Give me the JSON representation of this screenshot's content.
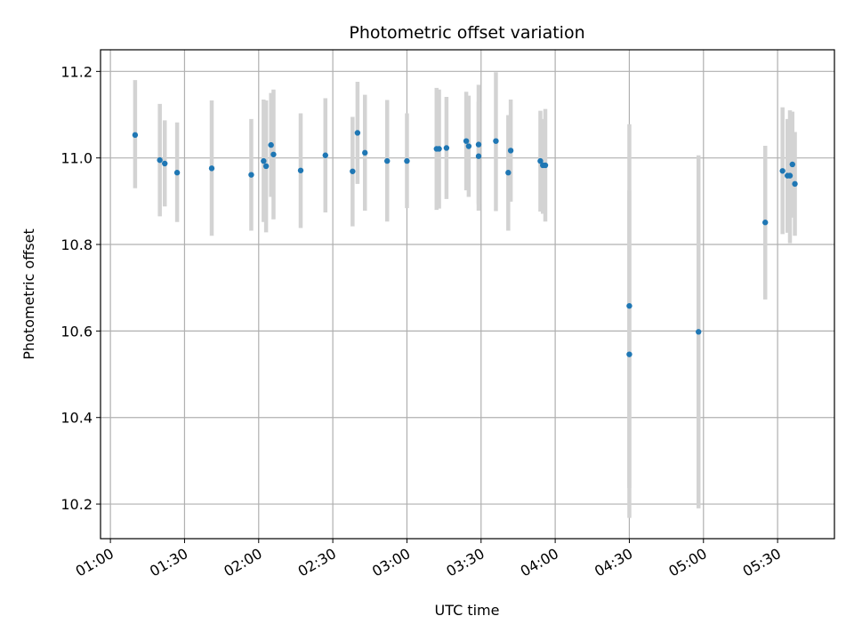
{
  "chart_data": {
    "type": "scatter",
    "title": "Photometric offset variation",
    "xlabel": "UTC time",
    "ylabel": "Photometric offset",
    "x_tick_labels": [
      "01:00",
      "01:30",
      "02:00",
      "02:30",
      "03:00",
      "03:30",
      "04:00",
      "04:30",
      "05:00",
      "05:30"
    ],
    "x_ticks": [
      "01:00",
      "01:30",
      "02:00",
      "02:30",
      "03:00",
      "03:30",
      "04:00",
      "04:30",
      "05:00",
      "05:30"
    ],
    "y_ticks": [
      10.2,
      10.4,
      10.6,
      10.8,
      11.0,
      11.2
    ],
    "y_tick_labels": [
      "10.2",
      "10.4",
      "10.6",
      "10.8",
      "11.0",
      "11.2"
    ],
    "xlim": [
      "00:56",
      "05:53"
    ],
    "ylim": [
      10.12,
      11.25
    ],
    "grid": true,
    "marker_color": "#1f77b4",
    "errorbar_color": "#d3d3d3",
    "series": [
      {
        "points": [
          {
            "t": "01:10",
            "y": 11.053,
            "lo": 10.93,
            "hi": 11.18
          },
          {
            "t": "01:20",
            "y": 10.995,
            "lo": 10.865,
            "hi": 11.125
          },
          {
            "t": "01:22",
            "y": 10.987,
            "lo": 10.888,
            "hi": 11.087
          },
          {
            "t": "01:27",
            "y": 10.966,
            "lo": 10.852,
            "hi": 11.082
          },
          {
            "t": "01:41",
            "y": 10.976,
            "lo": 10.82,
            "hi": 11.133
          },
          {
            "t": "01:57",
            "y": 10.961,
            "lo": 10.832,
            "hi": 11.09
          },
          {
            "t": "02:02",
            "y": 10.993,
            "lo": 10.852,
            "hi": 11.135
          },
          {
            "t": "02:03",
            "y": 10.981,
            "lo": 10.828,
            "hi": 11.133
          },
          {
            "t": "02:05",
            "y": 11.03,
            "lo": 10.91,
            "hi": 11.15
          },
          {
            "t": "02:06",
            "y": 11.008,
            "lo": 10.858,
            "hi": 11.158
          },
          {
            "t": "02:17",
            "y": 10.971,
            "lo": 10.838,
            "hi": 11.103
          },
          {
            "t": "02:27",
            "y": 11.006,
            "lo": 10.874,
            "hi": 11.138
          },
          {
            "t": "02:38",
            "y": 10.969,
            "lo": 10.842,
            "hi": 11.095
          },
          {
            "t": "02:40",
            "y": 11.058,
            "lo": 10.94,
            "hi": 11.176
          },
          {
            "t": "02:43",
            "y": 11.012,
            "lo": 10.878,
            "hi": 11.146
          },
          {
            "t": "02:52",
            "y": 10.993,
            "lo": 10.853,
            "hi": 11.134
          },
          {
            "t": "03:00",
            "y": 10.993,
            "lo": 10.884,
            "hi": 11.103
          },
          {
            "t": "03:12",
            "y": 11.021,
            "lo": 10.88,
            "hi": 11.162
          },
          {
            "t": "03:13",
            "y": 11.021,
            "lo": 10.883,
            "hi": 11.158
          },
          {
            "t": "03:16",
            "y": 11.023,
            "lo": 10.905,
            "hi": 11.141
          },
          {
            "t": "03:24",
            "y": 11.039,
            "lo": 10.925,
            "hi": 11.153
          },
          {
            "t": "03:25",
            "y": 11.027,
            "lo": 10.91,
            "hi": 11.144
          },
          {
            "t": "03:29",
            "y": 11.004,
            "lo": 10.878,
            "hi": 11.13
          },
          {
            "t": "03:29",
            "y": 11.031,
            "lo": 10.893,
            "hi": 11.169
          },
          {
            "t": "03:36",
            "y": 11.039,
            "lo": 10.877,
            "hi": 11.198
          },
          {
            "t": "03:41",
            "y": 10.966,
            "lo": 10.832,
            "hi": 11.099
          },
          {
            "t": "03:42",
            "y": 11.017,
            "lo": 10.899,
            "hi": 11.135
          },
          {
            "t": "03:54",
            "y": 10.993,
            "lo": 10.876,
            "hi": 11.109
          },
          {
            "t": "03:55",
            "y": 10.983,
            "lo": 10.871,
            "hi": 11.09
          },
          {
            "t": "03:56",
            "y": 10.983,
            "lo": 10.853,
            "hi": 11.113
          },
          {
            "t": "04:30",
            "y": 10.658,
            "lo": 10.237,
            "hi": 11.078
          },
          {
            "t": "04:30",
            "y": 10.546,
            "lo": 10.168,
            "hi": 10.925
          },
          {
            "t": "04:58",
            "y": 10.598,
            "lo": 10.19,
            "hi": 11.006
          },
          {
            "t": "05:25",
            "y": 10.851,
            "lo": 10.673,
            "hi": 11.028
          },
          {
            "t": "05:32",
            "y": 10.97,
            "lo": 10.824,
            "hi": 11.117
          },
          {
            "t": "05:34",
            "y": 10.959,
            "lo": 10.827,
            "hi": 11.09
          },
          {
            "t": "05:35",
            "y": 10.959,
            "lo": 10.803,
            "hi": 11.11
          },
          {
            "t": "05:36",
            "y": 10.985,
            "lo": 10.862,
            "hi": 11.107
          },
          {
            "t": "05:37",
            "y": 10.94,
            "lo": 10.82,
            "hi": 11.06
          }
        ]
      }
    ]
  }
}
